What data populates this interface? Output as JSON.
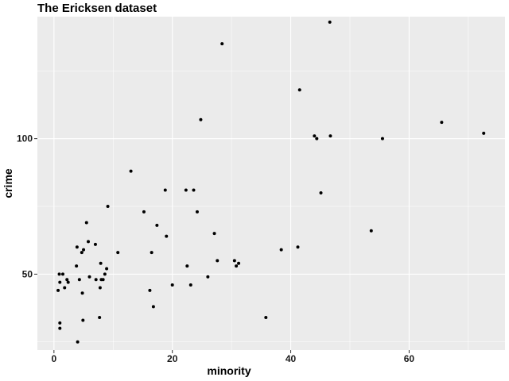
{
  "chart_data": {
    "type": "scatter",
    "title": "The Ericksen dataset",
    "xlabel": "minority",
    "ylabel": "crime",
    "xlim": [
      -2.8,
      76.2
    ],
    "ylim": [
      22,
      145
    ],
    "x_ticks": [
      0,
      20,
      40,
      60
    ],
    "x_tick_labels": [
      "0",
      "20",
      "40",
      "60"
    ],
    "x_minor_ticks": [
      10,
      30,
      50,
      70
    ],
    "y_ticks": [
      50,
      100
    ],
    "y_tick_labels": [
      "50",
      "100"
    ],
    "y_minor_ticks": [
      25,
      75,
      125
    ],
    "grid": true,
    "legend": "none",
    "point_color": "#000000",
    "panel_color": "#ebebeb",
    "points": [
      {
        "x": 0.7,
        "y": 44
      },
      {
        "x": 0.9,
        "y": 50
      },
      {
        "x": 1.0,
        "y": 47
      },
      {
        "x": 1.0,
        "y": 32
      },
      {
        "x": 1.0,
        "y": 30
      },
      {
        "x": 1.5,
        "y": 50
      },
      {
        "x": 1.8,
        "y": 45
      },
      {
        "x": 2.2,
        "y": 48
      },
      {
        "x": 2.4,
        "y": 47
      },
      {
        "x": 3.8,
        "y": 53
      },
      {
        "x": 3.9,
        "y": 60
      },
      {
        "x": 4.0,
        "y": 25
      },
      {
        "x": 4.3,
        "y": 48
      },
      {
        "x": 4.7,
        "y": 58
      },
      {
        "x": 4.8,
        "y": 43
      },
      {
        "x": 4.9,
        "y": 33
      },
      {
        "x": 5.0,
        "y": 59
      },
      {
        "x": 5.5,
        "y": 69
      },
      {
        "x": 5.8,
        "y": 62
      },
      {
        "x": 6.0,
        "y": 49
      },
      {
        "x": 7.0,
        "y": 61
      },
      {
        "x": 7.1,
        "y": 48
      },
      {
        "x": 7.7,
        "y": 34
      },
      {
        "x": 7.8,
        "y": 45
      },
      {
        "x": 7.9,
        "y": 54
      },
      {
        "x": 8.0,
        "y": 48
      },
      {
        "x": 8.3,
        "y": 48
      },
      {
        "x": 8.6,
        "y": 50
      },
      {
        "x": 8.9,
        "y": 52
      },
      {
        "x": 9.1,
        "y": 75
      },
      {
        "x": 10.8,
        "y": 58
      },
      {
        "x": 13.0,
        "y": 88
      },
      {
        "x": 15.2,
        "y": 73
      },
      {
        "x": 16.2,
        "y": 44
      },
      {
        "x": 16.5,
        "y": 58
      },
      {
        "x": 16.8,
        "y": 38
      },
      {
        "x": 17.4,
        "y": 68
      },
      {
        "x": 18.8,
        "y": 81
      },
      {
        "x": 19.0,
        "y": 64
      },
      {
        "x": 20.0,
        "y": 46
      },
      {
        "x": 22.3,
        "y": 81
      },
      {
        "x": 22.5,
        "y": 53
      },
      {
        "x": 23.1,
        "y": 46
      },
      {
        "x": 23.6,
        "y": 81
      },
      {
        "x": 24.2,
        "y": 73
      },
      {
        "x": 24.8,
        "y": 107
      },
      {
        "x": 26.0,
        "y": 49
      },
      {
        "x": 27.1,
        "y": 65
      },
      {
        "x": 27.6,
        "y": 55
      },
      {
        "x": 28.4,
        "y": 135
      },
      {
        "x": 30.5,
        "y": 55
      },
      {
        "x": 30.8,
        "y": 53
      },
      {
        "x": 31.2,
        "y": 54
      },
      {
        "x": 35.8,
        "y": 34
      },
      {
        "x": 38.4,
        "y": 59
      },
      {
        "x": 41.2,
        "y": 60
      },
      {
        "x": 41.5,
        "y": 118
      },
      {
        "x": 44.0,
        "y": 101
      },
      {
        "x": 44.4,
        "y": 100
      },
      {
        "x": 45.1,
        "y": 80
      },
      {
        "x": 46.6,
        "y": 143
      },
      {
        "x": 46.7,
        "y": 101
      },
      {
        "x": 53.6,
        "y": 66
      },
      {
        "x": 55.5,
        "y": 100
      },
      {
        "x": 65.5,
        "y": 106
      },
      {
        "x": 72.6,
        "y": 102
      }
    ]
  }
}
